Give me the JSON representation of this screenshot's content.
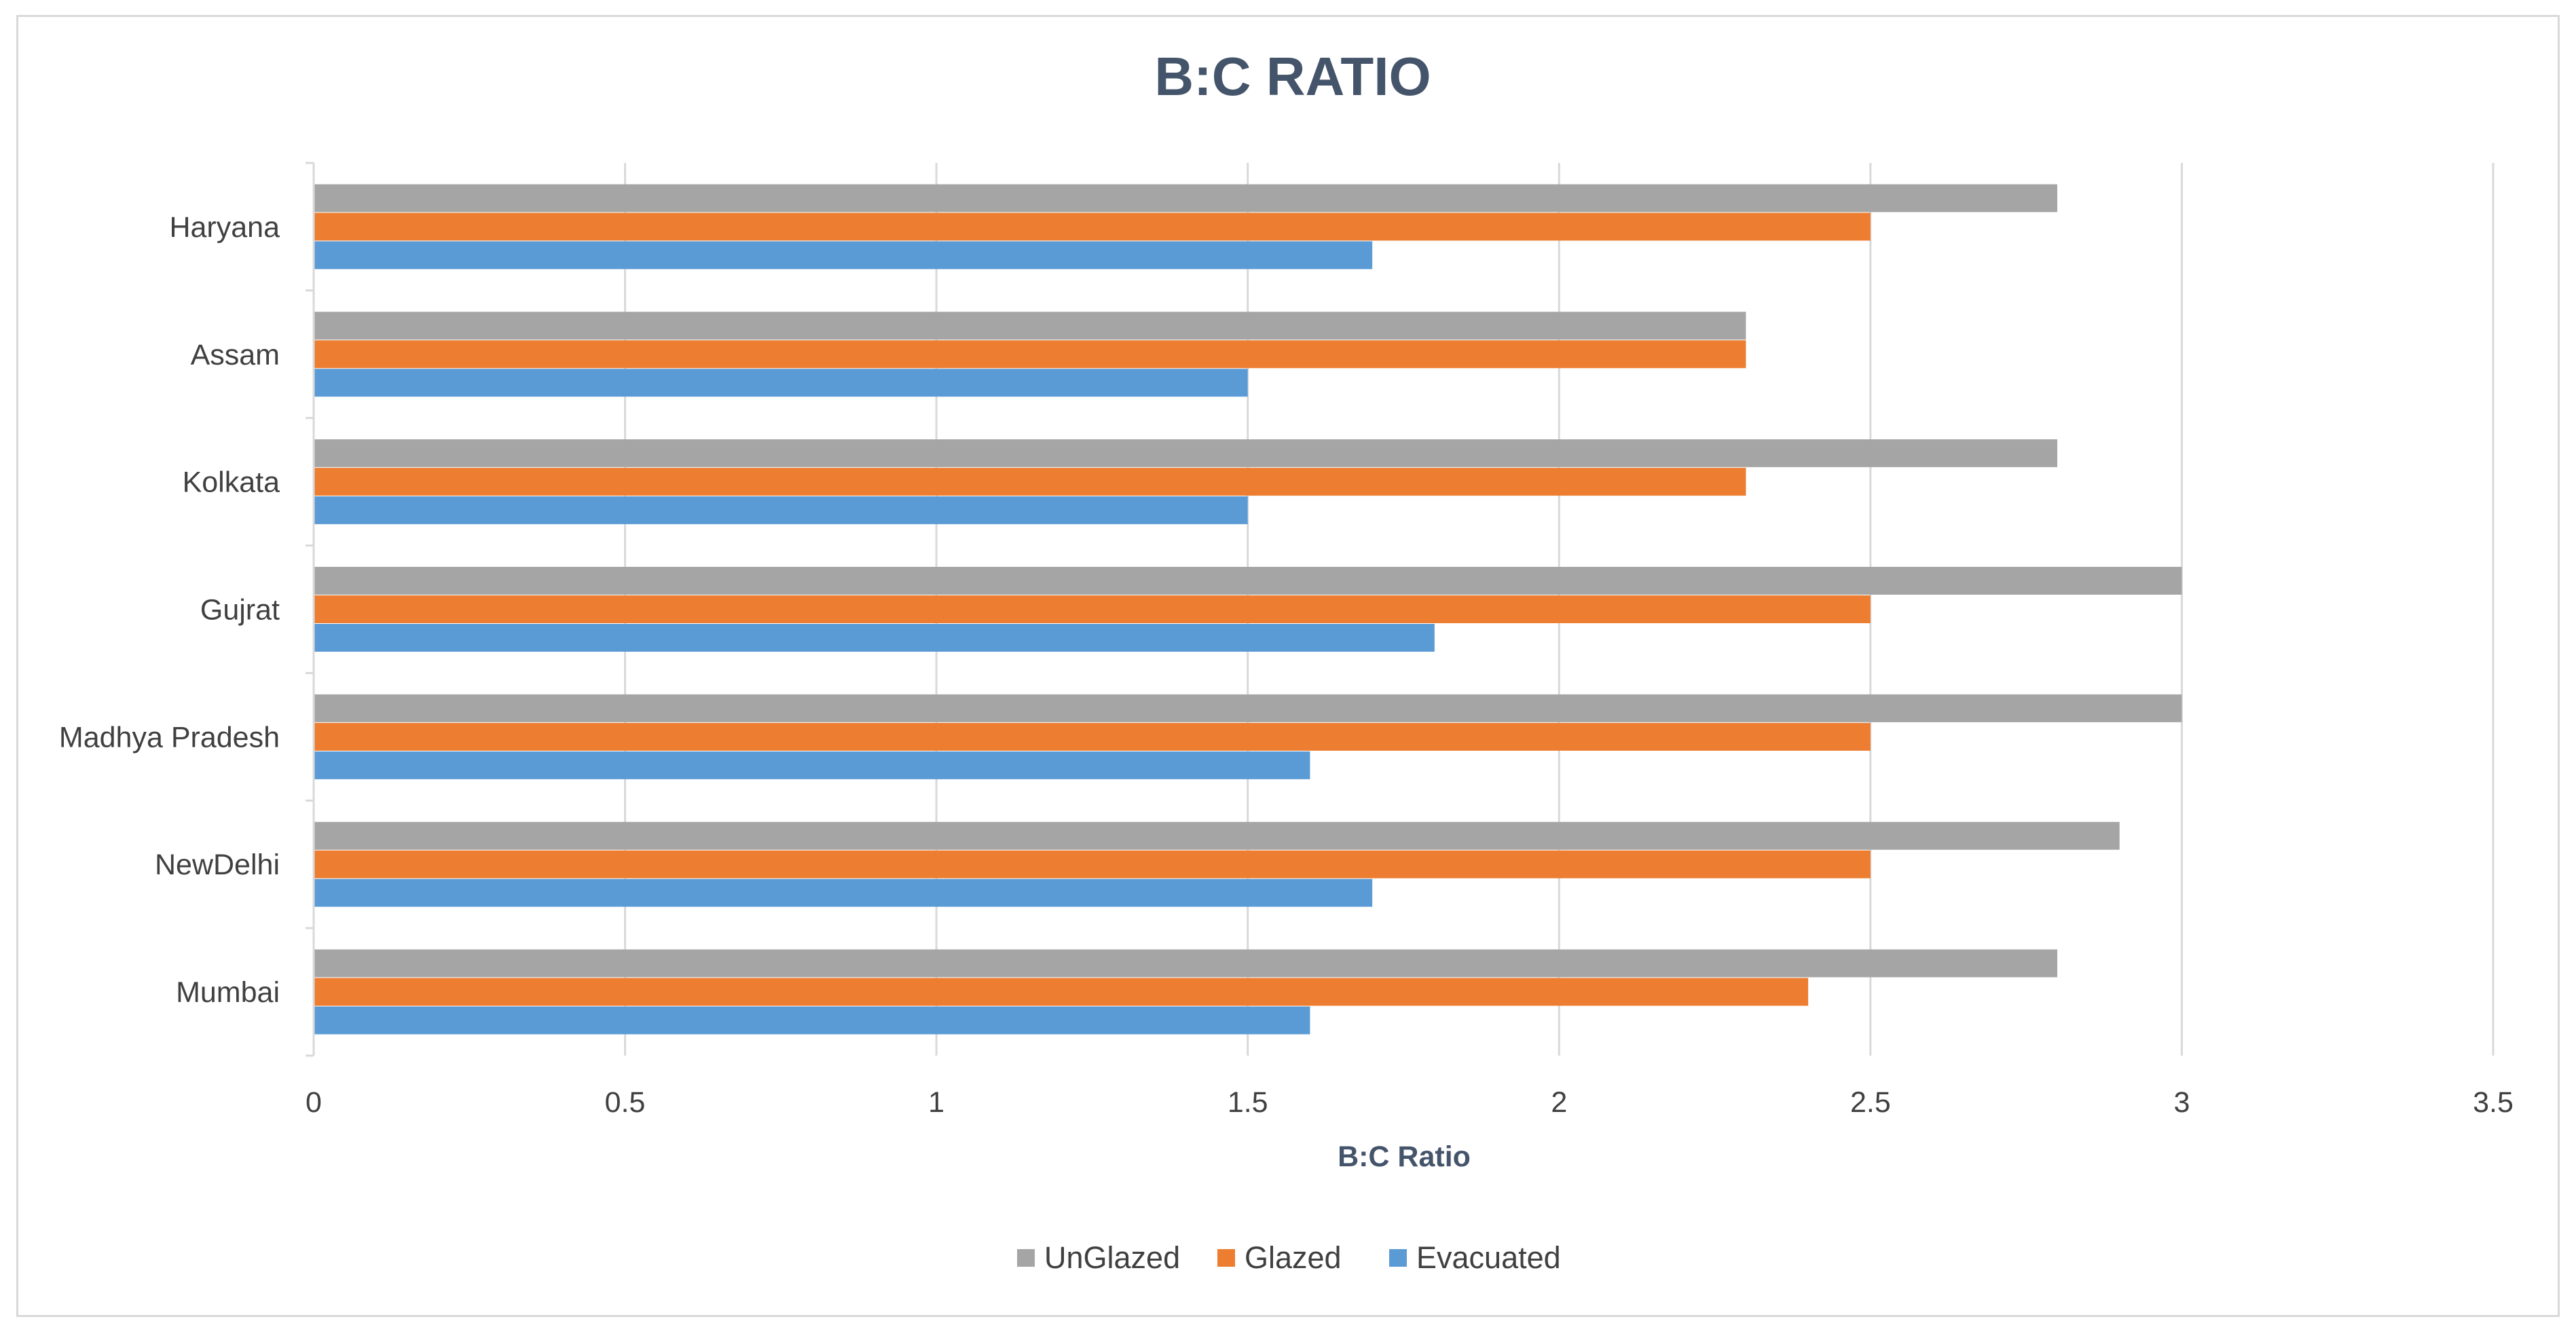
{
  "chart_data": {
    "type": "bar",
    "orientation": "horizontal",
    "title": "B:C RATIO",
    "xlabel": "B:C Ratio",
    "ylabel": "",
    "xlim": [
      0,
      3.5
    ],
    "x_ticks": [
      "0",
      "0.5",
      "1",
      "1.5",
      "2",
      "2.5",
      "3",
      "3.5"
    ],
    "grid": "vertical",
    "legend_position": "bottom",
    "categories": [
      "Mumbai",
      "NewDelhi",
      "Madhya Pradesh",
      "Gujrat",
      "Kolkata",
      "Assam",
      "Haryana"
    ],
    "series": [
      {
        "name": "Evacuated",
        "color": "#5b9bd5",
        "values": [
          1.6,
          1.7,
          1.6,
          1.8,
          1.5,
          1.5,
          1.7
        ]
      },
      {
        "name": "Glazed",
        "color": "#ed7d31",
        "values": [
          2.4,
          2.5,
          2.5,
          2.5,
          2.3,
          2.3,
          2.5
        ]
      },
      {
        "name": "UnGlazed",
        "color": "#a5a5a5",
        "values": [
          2.8,
          2.9,
          3.0,
          3.0,
          2.8,
          2.3,
          2.8
        ]
      }
    ],
    "legend_order": [
      "UnGlazed",
      "Glazed",
      "Evacuated"
    ]
  }
}
